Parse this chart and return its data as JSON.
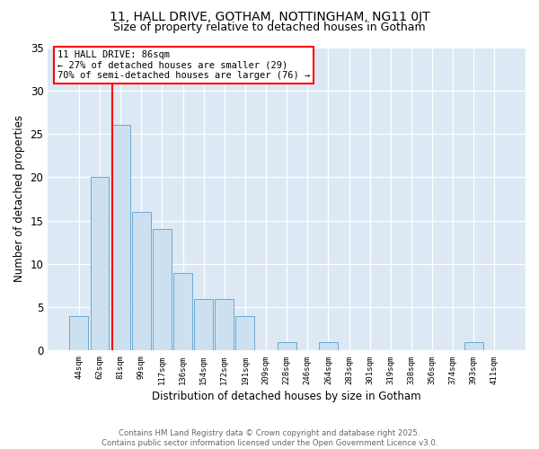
{
  "title1": "11, HALL DRIVE, GOTHAM, NOTTINGHAM, NG11 0JT",
  "title2": "Size of property relative to detached houses in Gotham",
  "xlabel": "Distribution of detached houses by size in Gotham",
  "ylabel": "Number of detached properties",
  "categories": [
    "44sqm",
    "62sqm",
    "81sqm",
    "99sqm",
    "117sqm",
    "136sqm",
    "154sqm",
    "172sqm",
    "191sqm",
    "209sqm",
    "228sqm",
    "246sqm",
    "264sqm",
    "283sqm",
    "301sqm",
    "319sqm",
    "338sqm",
    "356sqm",
    "374sqm",
    "393sqm",
    "411sqm"
  ],
  "values": [
    4,
    20,
    26,
    16,
    14,
    9,
    6,
    6,
    4,
    0,
    1,
    0,
    1,
    0,
    0,
    0,
    0,
    0,
    0,
    1,
    0
  ],
  "bar_color": "#cde0f0",
  "bar_edge_color": "#6aaad4",
  "red_line_x": 1.6,
  "annotation_title": "11 HALL DRIVE: 86sqm",
  "annotation_line2": "← 27% of detached houses are smaller (29)",
  "annotation_line3": "70% of semi-detached houses are larger (76) →",
  "ylim_max": 35,
  "yticks": [
    0,
    5,
    10,
    15,
    20,
    25,
    30,
    35
  ],
  "bg_color": "#dce9f5",
  "footer1": "Contains HM Land Registry data © Crown copyright and database right 2025.",
  "footer2": "Contains public sector information licensed under the Open Government Licence v3.0."
}
